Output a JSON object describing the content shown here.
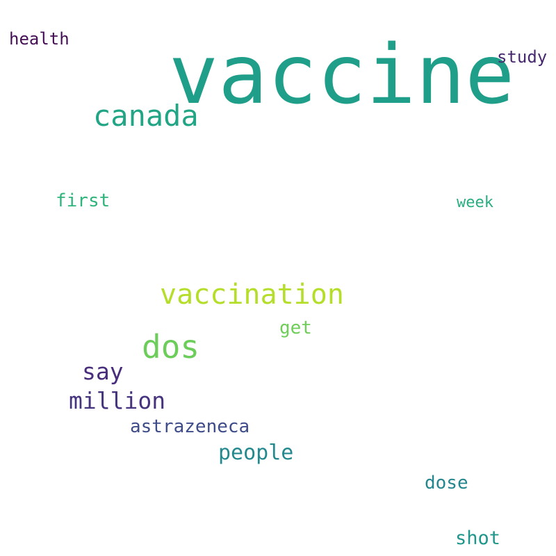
{
  "words": [
    {
      "text": "vaccine",
      "color": "#1f9e89"
    },
    {
      "text": "canada",
      "color": "#21a585"
    },
    {
      "text": "health",
      "color": "#440f55"
    },
    {
      "text": "study",
      "color": "#46286f"
    },
    {
      "text": "first",
      "color": "#2fb47c"
    },
    {
      "text": "week",
      "color": "#29ae80"
    },
    {
      "text": "vaccination",
      "color": "#b5de2b"
    },
    {
      "text": "get",
      "color": "#6ece58"
    },
    {
      "text": "dos",
      "color": "#6ccd5a"
    },
    {
      "text": "say",
      "color": "#472d7b"
    },
    {
      "text": "million",
      "color": "#46337e"
    },
    {
      "text": "astrazeneca",
      "color": "#3e4c8a"
    },
    {
      "text": "people",
      "color": "#23898e"
    },
    {
      "text": "dose",
      "color": "#24868e"
    },
    {
      "text": "shot",
      "color": "#1f968b"
    }
  ]
}
